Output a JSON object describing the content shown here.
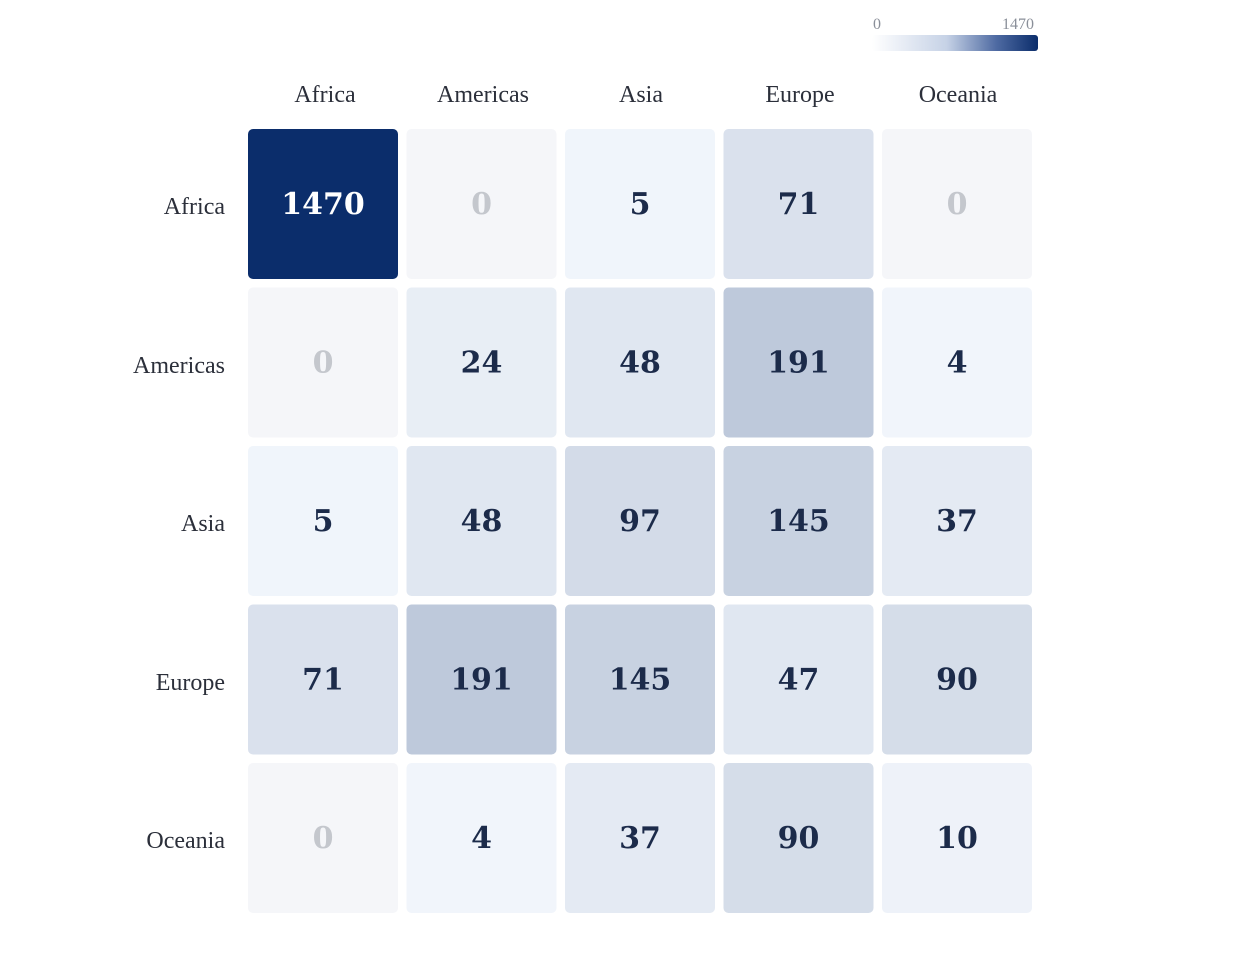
{
  "chart_data": {
    "type": "heatmap",
    "columns": [
      "Africa",
      "Americas",
      "Asia",
      "Europe",
      "Oceania"
    ],
    "rows": [
      "Africa",
      "Americas",
      "Asia",
      "Europe",
      "Oceania"
    ],
    "values": [
      [
        1470,
        0,
        5,
        71,
        0
      ],
      [
        0,
        24,
        48,
        191,
        4
      ],
      [
        5,
        48,
        97,
        145,
        37
      ],
      [
        71,
        191,
        145,
        47,
        90
      ],
      [
        0,
        4,
        37,
        90,
        10
      ]
    ],
    "color_scale": {
      "min": 0,
      "max": 1470,
      "min_label": "0",
      "max_label": "1470",
      "low_color": "#f4f8fd",
      "high_color": "#0b2d6b",
      "zero_color": "#f5f6f9"
    },
    "legend_position": "top-right",
    "text_dark": "#1c2b4a",
    "text_light": "#ffffff",
    "text_zero": "#c4c7cd",
    "label_color": "#2b2f3a"
  }
}
